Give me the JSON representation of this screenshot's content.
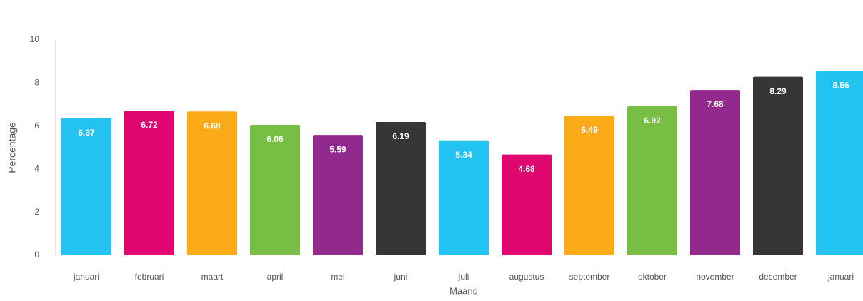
{
  "chart_data": {
    "type": "bar",
    "x_label": "Maand",
    "y_label": "Percentage",
    "categories": [
      "januari",
      "februari",
      "maart",
      "april",
      "mei",
      "juni",
      "juli",
      "augustus",
      "september",
      "oktober",
      "november",
      "december",
      "januari"
    ],
    "values": [
      6.37,
      6.72,
      6.68,
      6.06,
      5.59,
      6.19,
      5.34,
      4.68,
      6.49,
      6.92,
      7.68,
      8.29,
      8.56
    ],
    "colors": [
      "#22c3f0",
      "#e0066f",
      "#fbab18",
      "#76bf44",
      "#922a8d",
      "#363636",
      "#22c3f0",
      "#e0066f",
      "#fbab18",
      "#76bf44",
      "#922a8d",
      "#363636",
      "#22c3f0"
    ],
    "ylim": [
      0,
      10
    ],
    "yticks": [
      0,
      2,
      4,
      6,
      8,
      10
    ],
    "grid": false
  }
}
